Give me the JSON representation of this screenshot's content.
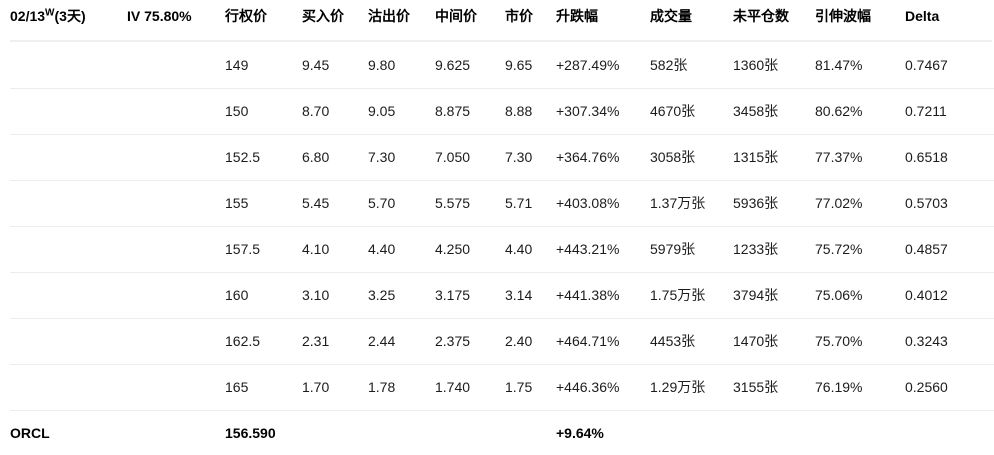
{
  "header": {
    "expiry": {
      "date": "02/13",
      "sup": "W",
      "days": "(3天)"
    },
    "iv_summary": "IV 75.80%",
    "columns": [
      "行权价",
      "买入价",
      "沽出价",
      "中间价",
      "市价",
      "升跌幅",
      "成交量",
      "未平仓数",
      "引伸波幅",
      "Delta"
    ]
  },
  "rows": [
    {
      "strike": "149",
      "bid": "9.45",
      "ask": "9.80",
      "mid": "9.625",
      "market": "9.65",
      "change": "+287.49%",
      "volume": "582张",
      "open_interest": "1360张",
      "iv": "81.47%",
      "delta": "0.7467"
    },
    {
      "strike": "150",
      "bid": "8.70",
      "ask": "9.05",
      "mid": "8.875",
      "market": "8.88",
      "change": "+307.34%",
      "volume": "4670张",
      "open_interest": "3458张",
      "iv": "80.62%",
      "delta": "0.7211"
    },
    {
      "strike": "152.5",
      "bid": "6.80",
      "ask": "7.30",
      "mid": "7.050",
      "market": "7.30",
      "change": "+364.76%",
      "volume": "3058张",
      "open_interest": "1315张",
      "iv": "77.37%",
      "delta": "0.6518"
    },
    {
      "strike": "155",
      "bid": "5.45",
      "ask": "5.70",
      "mid": "5.575",
      "market": "5.71",
      "change": "+403.08%",
      "volume": "1.37万张",
      "open_interest": "5936张",
      "iv": "77.02%",
      "delta": "0.5703"
    },
    {
      "strike": "157.5",
      "bid": "4.10",
      "ask": "4.40",
      "mid": "4.250",
      "market": "4.40",
      "change": "+443.21%",
      "volume": "5979张",
      "open_interest": "1233张",
      "iv": "75.72%",
      "delta": "0.4857"
    },
    {
      "strike": "160",
      "bid": "3.10",
      "ask": "3.25",
      "mid": "3.175",
      "market": "3.14",
      "change": "+441.38%",
      "volume": "1.75万张",
      "open_interest": "3794张",
      "iv": "75.06%",
      "delta": "0.4012"
    },
    {
      "strike": "162.5",
      "bid": "2.31",
      "ask": "2.44",
      "mid": "2.375",
      "market": "2.40",
      "change": "+464.71%",
      "volume": "4453张",
      "open_interest": "1470张",
      "iv": "75.70%",
      "delta": "0.3243"
    },
    {
      "strike": "165",
      "bid": "1.70",
      "ask": "1.78",
      "mid": "1.740",
      "market": "1.75",
      "change": "+446.36%",
      "volume": "1.29万张",
      "open_interest": "3155张",
      "iv": "76.19%",
      "delta": "0.2560"
    }
  ],
  "footer": {
    "symbol": "ORCL",
    "price": "156.590",
    "change": "+9.64%"
  }
}
